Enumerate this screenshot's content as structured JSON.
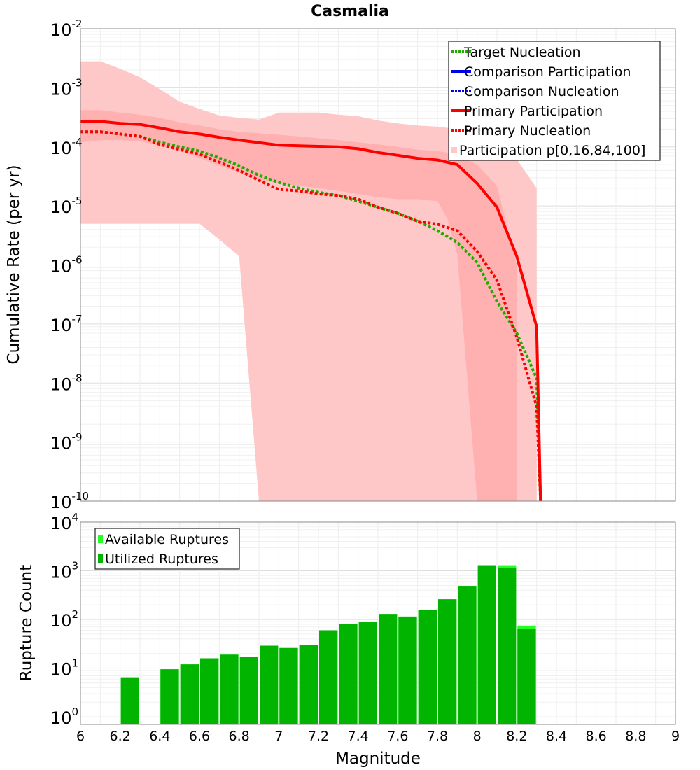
{
  "chart_data": [
    {
      "type": "line",
      "title": "Casmalia",
      "xlabel": "",
      "ylabel": "Cumulative Rate (per yr)",
      "xlim": [
        6,
        9
      ],
      "ylim": [
        1e-10,
        0.01
      ],
      "yscale": "log",
      "grid": true,
      "legend_position": "top-right",
      "y_ticks": [
        {
          "base": "10",
          "exp": "-2",
          "value": 0.01
        },
        {
          "base": "10",
          "exp": "-3",
          "value": 0.001
        },
        {
          "base": "10",
          "exp": "-4",
          "value": 0.0001
        },
        {
          "base": "10",
          "exp": "-5",
          "value": 1e-05
        },
        {
          "base": "10",
          "exp": "-6",
          "value": 1e-06
        },
        {
          "base": "10",
          "exp": "-7",
          "value": 1e-07
        },
        {
          "base": "10",
          "exp": "-8",
          "value": 1e-08
        },
        {
          "base": "10",
          "exp": "-9",
          "value": 1e-09
        },
        {
          "base": "10",
          "exp": "-10",
          "value": 1e-10
        }
      ],
      "legend": [
        {
          "label": " Target Nucleation",
          "color": "#22aa00",
          "style": "dotted"
        },
        {
          "label": "Comparison Participation",
          "color": "#0000ee",
          "style": "solid"
        },
        {
          "label": " Comparison Nucleation",
          "color": "#0000ee",
          "style": "dotted"
        },
        {
          "label": "Primary Participation",
          "color": "#ff0000",
          "style": "solid"
        },
        {
          "label": " Primary Nucleation",
          "color": "#ff0000",
          "style": "dotted"
        },
        {
          "label": "Participation p[0,16,84,100]",
          "color": "#ffc8c8",
          "style": "box"
        }
      ],
      "series": [
        {
          "name": "Target Nucleation",
          "color": "#22aa00",
          "style": "dotted",
          "x": [
            6.0,
            6.1,
            6.2,
            6.3,
            6.4,
            6.5,
            6.6,
            6.7,
            6.8,
            6.9,
            7.0,
            7.1,
            7.2,
            7.3,
            7.4,
            7.5,
            7.6,
            7.7,
            7.8,
            7.9,
            8.0,
            8.1,
            8.2,
            8.3,
            8.32
          ],
          "y": [
            0.00018,
            0.00018,
            0.000165,
            0.00015,
            0.00012,
            0.0001,
            8.5e-05,
            6.5e-05,
            4.8e-05,
            3.3e-05,
            2.5e-05,
            2e-05,
            1.7e-05,
            1.5e-05,
            1.2e-05,
            9.5e-06,
            7.5e-06,
            5.5e-06,
            3.8e-06,
            2.4e-06,
            1.1e-06,
            2.4e-07,
            7e-08,
            1.2e-08,
            1e-10
          ]
        },
        {
          "name": "Primary Nucleation",
          "color": "#ff0000",
          "style": "dotted",
          "x": [
            6.0,
            6.1,
            6.2,
            6.3,
            6.4,
            6.5,
            6.6,
            6.7,
            6.8,
            6.9,
            7.0,
            7.1,
            7.2,
            7.3,
            7.4,
            7.5,
            7.6,
            7.7,
            7.8,
            7.9,
            8.0,
            8.1,
            8.2,
            8.3,
            8.32
          ],
          "y": [
            0.00018,
            0.00018,
            0.000165,
            0.00015,
            0.00011,
            9e-05,
            7.5e-05,
            5.5e-05,
            4e-05,
            2.7e-05,
            1.9e-05,
            1.8e-05,
            1.6e-05,
            1.5e-05,
            1.3e-05,
            9.5e-06,
            7.5e-06,
            5.5e-06,
            4.9e-06,
            3.8e-06,
            1.7e-06,
            5.5e-07,
            6e-08,
            4e-09,
            1e-10
          ]
        },
        {
          "name": "Primary Participation",
          "color": "#ff0000",
          "style": "solid",
          "x": [
            6.0,
            6.1,
            6.2,
            6.3,
            6.4,
            6.5,
            6.6,
            6.7,
            6.8,
            6.9,
            7.0,
            7.1,
            7.2,
            7.3,
            7.4,
            7.5,
            7.6,
            7.7,
            7.8,
            7.9,
            8.0,
            8.1,
            8.2,
            8.3,
            8.32
          ],
          "y": [
            0.00027,
            0.00027,
            0.00025,
            0.00024,
            0.00021,
            0.00018,
            0.000165,
            0.000145,
            0.00013,
            0.000118,
            0.000107,
            0.000104,
            0.000102,
            0.0001,
            9.3e-05,
            8e-05,
            7.2e-05,
            6.4e-05,
            6e-05,
            5e-05,
            2.4e-05,
            9.5e-06,
            1.4e-06,
            9e-08,
            1e-10
          ]
        }
      ],
      "bands": [
        {
          "name": "Participation p[0,100]",
          "color": "#ffc8c8",
          "x": [
            6.0,
            6.1,
            6.2,
            6.3,
            6.4,
            6.5,
            6.6,
            6.7,
            6.8,
            6.9,
            7.0,
            7.1,
            7.2,
            7.3,
            7.4,
            7.5,
            7.6,
            7.7,
            7.8,
            7.9,
            8.0,
            8.1,
            8.2,
            8.3
          ],
          "lower": [
            5e-06,
            5e-06,
            5e-06,
            5e-06,
            5e-06,
            5e-06,
            5e-06,
            2.7e-06,
            1.4e-06,
            1e-10,
            1e-10,
            1e-10,
            1e-10,
            1e-10,
            1e-10,
            1e-10,
            1e-10,
            1e-10,
            1e-10,
            1e-10,
            1e-10,
            1e-10,
            1e-10,
            1e-10
          ],
          "upper": [
            0.0028,
            0.0028,
            0.0021,
            0.0015,
            0.00095,
            0.00058,
            0.00044,
            0.00034,
            0.00031,
            0.00029,
            0.00038,
            0.00038,
            0.00038,
            0.00035,
            0.00033,
            0.00028,
            0.00025,
            0.00023,
            0.00022,
            0.0002,
            0.00018,
            0.00011,
            6.2e-05,
            2e-05
          ]
        },
        {
          "name": "Participation p[16,84]",
          "color": "#ffb0b0",
          "x": [
            6.0,
            6.1,
            6.2,
            6.3,
            6.4,
            6.5,
            6.6,
            6.7,
            6.8,
            6.9,
            7.0,
            7.1,
            7.2,
            7.3,
            7.4,
            7.5,
            7.6,
            7.7,
            7.8,
            7.85,
            7.9,
            8.0,
            8.1,
            8.2
          ],
          "lower": [
            0.00012,
            0.00013,
            0.00013,
            0.000125,
            0.000105,
            8.5e-05,
            6.5e-05,
            4.8e-05,
            3.7e-05,
            2.8e-05,
            2.4e-05,
            2.2e-05,
            2e-05,
            1.8e-05,
            1.6e-05,
            1.4e-05,
            1.3e-05,
            1.3e-05,
            1.2e-05,
            6e-06,
            1.5e-06,
            1e-10,
            1e-10,
            1e-10
          ],
          "upper": [
            0.00042,
            0.00042,
            0.00038,
            0.00035,
            0.00031,
            0.00026,
            0.00023,
            0.0002,
            0.00018,
            0.00017,
            0.00016,
            0.00015,
            0.00014,
            0.00013,
            0.00012,
            0.00011,
            0.0001,
            9e-05,
            8.5e-05,
            8e-05,
            7.2e-05,
            5e-05,
            2.2e-05,
            1e-06
          ]
        }
      ]
    },
    {
      "type": "bar",
      "xlabel": "Magnitude",
      "ylabel": "Rupture Count",
      "xlim": [
        6,
        9
      ],
      "ylim": [
        0.7,
        10000
      ],
      "yscale": "log",
      "grid": true,
      "legend_position": "top-left",
      "y_ticks": [
        {
          "base": "10",
          "exp": "4",
          "value": 10000
        },
        {
          "base": "10",
          "exp": "3",
          "value": 1000
        },
        {
          "base": "10",
          "exp": "2",
          "value": 100
        },
        {
          "base": "10",
          "exp": "1",
          "value": 10
        },
        {
          "base": "10",
          "exp": "0",
          "value": 1
        }
      ],
      "x_ticks": [
        "6",
        "6.2",
        "6.4",
        "6.6",
        "6.8",
        "7",
        "7.2",
        "7.4",
        "7.6",
        "7.8",
        "8",
        "8.2",
        "8.4",
        "8.6",
        "8.8",
        "9"
      ],
      "legend": [
        {
          "label": "Available Ruptures",
          "color": "#22ff22"
        },
        {
          "label": "Utilized Ruptures",
          "color": "#00b400"
        }
      ],
      "categories": [
        6.25,
        6.45,
        6.55,
        6.65,
        6.75,
        6.85,
        6.95,
        7.05,
        7.15,
        7.25,
        7.35,
        7.45,
        7.55,
        7.65,
        7.75,
        7.85,
        7.95,
        8.05,
        8.15,
        8.25
      ],
      "series": [
        {
          "name": "Available Ruptures",
          "color": "#22ff22",
          "values": [
            6.5,
            9.5,
            12,
            16,
            19,
            17,
            29,
            26,
            30,
            60,
            80,
            90,
            130,
            115,
            155,
            260,
            490,
            1300,
            1300,
            75
          ]
        },
        {
          "name": "Utilized Ruptures",
          "color": "#00b400",
          "values": [
            6.5,
            9.5,
            12,
            16,
            19,
            17,
            29,
            26,
            30,
            60,
            80,
            90,
            130,
            115,
            155,
            260,
            490,
            1300,
            1150,
            65
          ]
        }
      ]
    }
  ]
}
